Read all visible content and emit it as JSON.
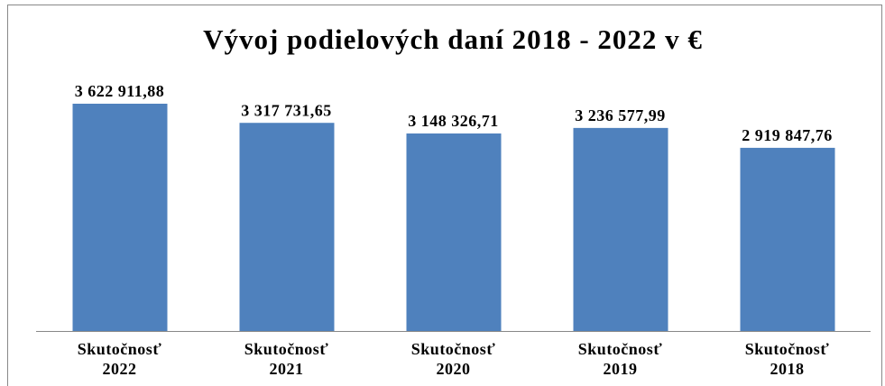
{
  "chart_data": {
    "type": "bar",
    "title": "Vývoj podielových daní 2018 - 2022 v €",
    "categories": [
      "Skutočnosť 2022",
      "Skutočnosť 2021",
      "Skutočnosť 2020",
      "Skutočnosť 2019",
      "Skutočnosť 2018"
    ],
    "values": [
      3622911.88,
      3317731.65,
      3148326.71,
      3236577.99,
      2919847.76
    ],
    "value_labels": [
      "3 622 911,88",
      "3 317 731,65",
      "3 148 326,71",
      "3 236 577,99",
      "2 919 847,76"
    ],
    "color": "#4f81bd"
  }
}
